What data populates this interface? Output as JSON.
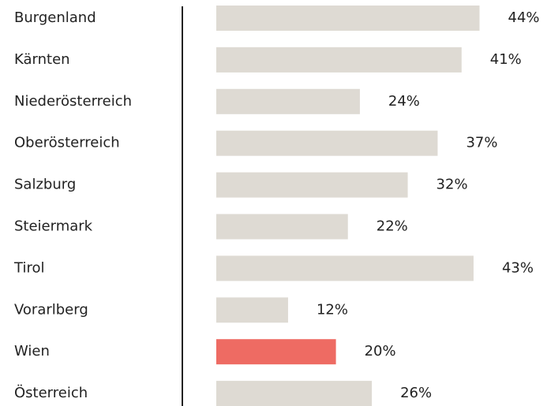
{
  "chart_data": {
    "type": "bar",
    "orientation": "horizontal",
    "categories": [
      "Burgenland",
      "Kärnten",
      "Niederösterreich",
      "Oberösterreich",
      "Salzburg",
      "Steiermark",
      "Tirol",
      "Vorarlberg",
      "Wien",
      "Österreich"
    ],
    "values": [
      44,
      41,
      24,
      37,
      32,
      22,
      43,
      12,
      20,
      26
    ],
    "value_labels": [
      "44%",
      "41%",
      "24%",
      "37%",
      "32%",
      "22%",
      "43%",
      "12%",
      "20%",
      "26%"
    ],
    "colors": [
      "#dedad3",
      "#dedad3",
      "#dedad3",
      "#dedad3",
      "#dedad3",
      "#dedad3",
      "#dedad3",
      "#dedad3",
      "#ee6b63",
      "#dedad3"
    ]
  }
}
